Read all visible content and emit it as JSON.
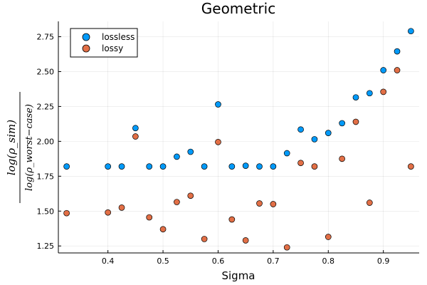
{
  "chart_data": {
    "type": "scatter",
    "title": "Geometric",
    "xlabel": "Sigma",
    "ylabel": {
      "numerator": "log(ρ_sim)",
      "denominator": "log(ρ_worst−case)"
    },
    "xlim": [
      0.31,
      0.965
    ],
    "ylim": [
      1.2,
      2.86
    ],
    "xticks": [
      0.4,
      0.5,
      0.6,
      0.7,
      0.8,
      0.9
    ],
    "xtick_labels": [
      "0.4",
      "0.5",
      "0.6",
      "0.7",
      "0.8",
      "0.9"
    ],
    "yticks": [
      1.25,
      1.5,
      1.75,
      2.0,
      2.25,
      2.5,
      2.75
    ],
    "ytick_labels": [
      "1.25",
      "1.50",
      "1.75",
      "2.00",
      "2.25",
      "2.50",
      "2.75"
    ],
    "grid": true,
    "legend_position": "top-left",
    "series": [
      {
        "name": "lossless",
        "color": "#009af9",
        "points": [
          [
            0.325,
            1.82
          ],
          [
            0.4,
            1.82
          ],
          [
            0.425,
            1.82
          ],
          [
            0.45,
            2.095
          ],
          [
            0.475,
            1.82
          ],
          [
            0.5,
            1.82
          ],
          [
            0.525,
            1.89
          ],
          [
            0.55,
            1.925
          ],
          [
            0.575,
            1.82
          ],
          [
            0.6,
            2.265
          ],
          [
            0.625,
            1.82
          ],
          [
            0.65,
            1.825
          ],
          [
            0.675,
            1.82
          ],
          [
            0.7,
            1.82
          ],
          [
            0.725,
            1.915
          ],
          [
            0.75,
            2.085
          ],
          [
            0.775,
            2.015
          ],
          [
            0.8,
            2.06
          ],
          [
            0.825,
            2.13
          ],
          [
            0.85,
            2.315
          ],
          [
            0.875,
            2.345
          ],
          [
            0.9,
            2.51
          ],
          [
            0.925,
            2.645
          ],
          [
            0.95,
            2.79
          ]
        ]
      },
      {
        "name": "lossy",
        "color": "#e26f46",
        "points": [
          [
            0.325,
            1.485
          ],
          [
            0.4,
            1.49
          ],
          [
            0.425,
            1.525
          ],
          [
            0.45,
            2.035
          ],
          [
            0.475,
            1.455
          ],
          [
            0.5,
            1.37
          ],
          [
            0.525,
            1.565
          ],
          [
            0.55,
            1.61
          ],
          [
            0.575,
            1.3
          ],
          [
            0.6,
            1.995
          ],
          [
            0.625,
            1.44
          ],
          [
            0.65,
            1.29
          ],
          [
            0.675,
            1.555
          ],
          [
            0.7,
            1.55
          ],
          [
            0.725,
            1.24
          ],
          [
            0.75,
            1.845
          ],
          [
            0.775,
            1.82
          ],
          [
            0.8,
            1.315
          ],
          [
            0.825,
            1.875
          ],
          [
            0.85,
            2.14
          ],
          [
            0.875,
            1.56
          ],
          [
            0.9,
            2.355
          ],
          [
            0.925,
            2.51
          ],
          [
            0.95,
            1.82
          ]
        ]
      }
    ]
  }
}
